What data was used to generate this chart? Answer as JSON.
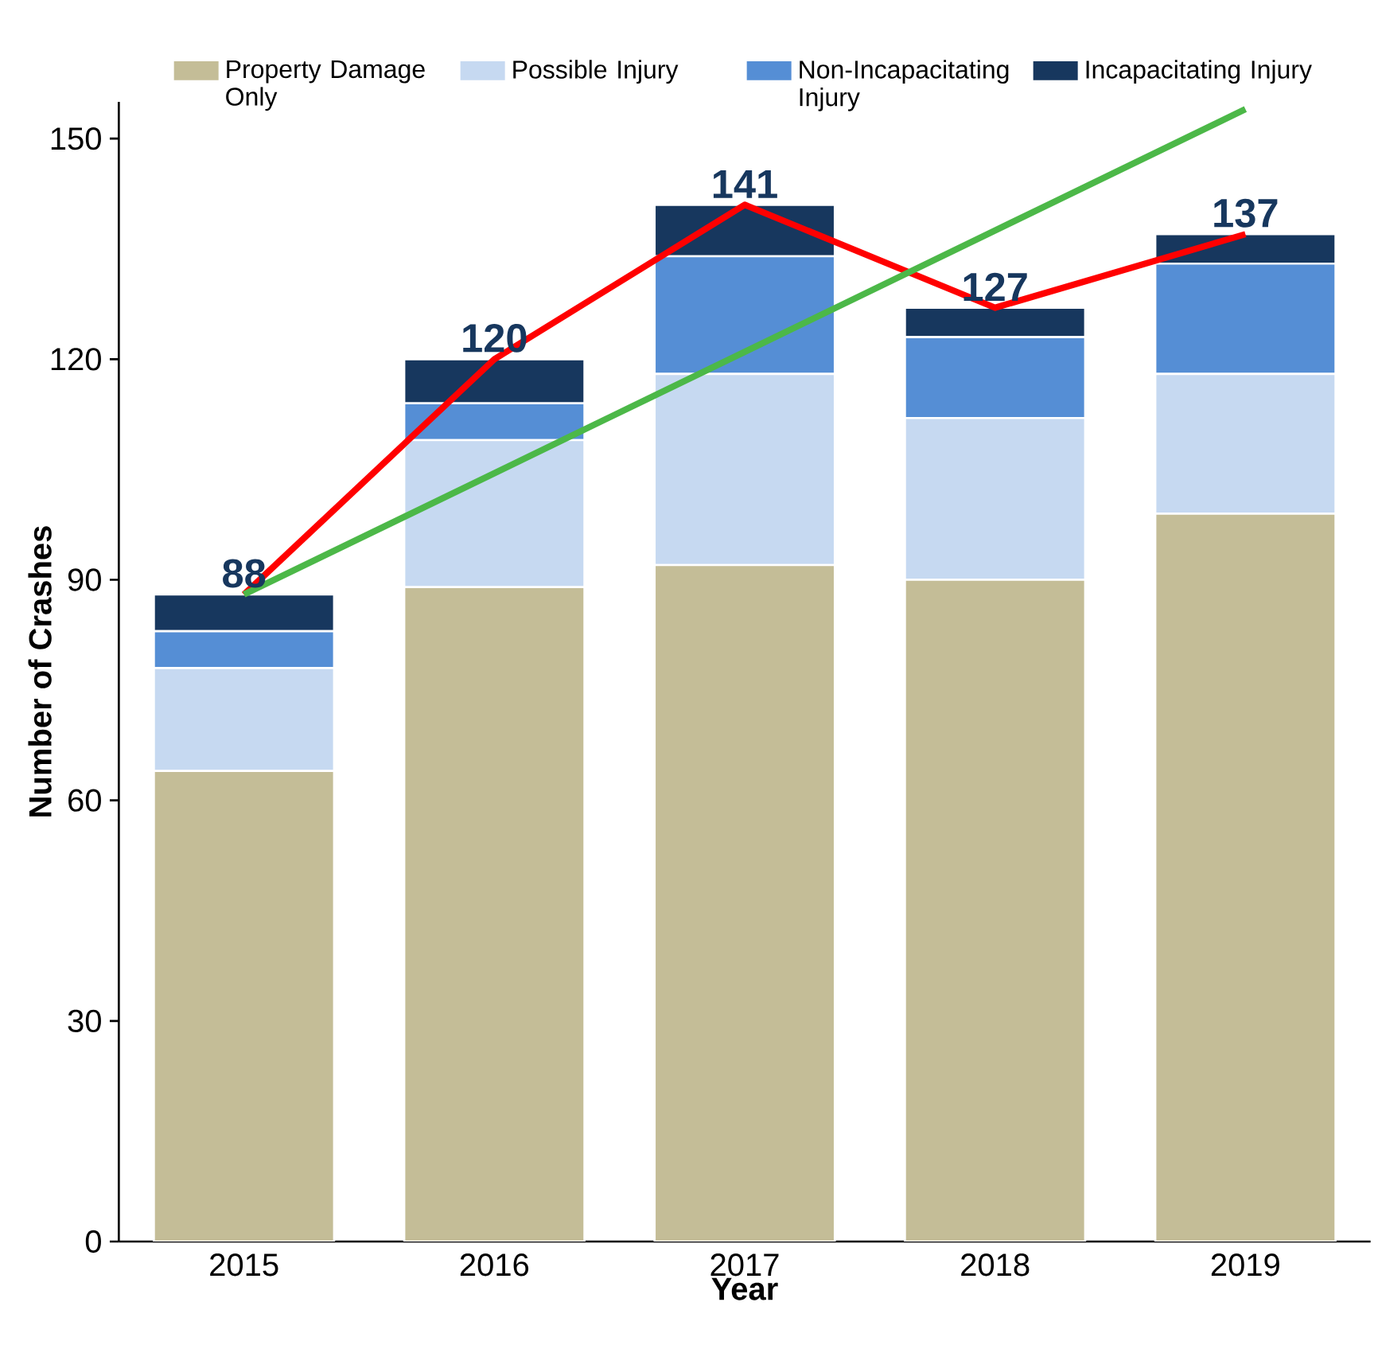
{
  "chart_data": {
    "type": "bar",
    "stacked": true,
    "xlabel": "Year",
    "ylabel": "Number of Crashes",
    "categories": [
      "2015",
      "2016",
      "2017",
      "2018",
      "2019"
    ],
    "series": [
      {
        "name": "Property Damage Only",
        "color": "#c4bd97",
        "values": [
          64,
          89,
          92,
          90,
          99
        ]
      },
      {
        "name": "Possible Injury",
        "color": "#c6d9f1",
        "values": [
          14,
          20,
          26,
          22,
          19
        ]
      },
      {
        "name": "Non-Incapacitating Injury",
        "color": "#558ed5",
        "values": [
          5,
          5,
          16,
          11,
          15
        ]
      },
      {
        "name": "Incapacitating Injury",
        "color": "#17375e",
        "values": [
          5,
          6,
          7,
          4,
          4
        ]
      },
      {
        "type": "line",
        "color": "#ff0000",
        "values": [
          88,
          120,
          141,
          127,
          137
        ]
      },
      {
        "type": "line",
        "color": "#4cb848",
        "values": [
          88,
          104.5,
          121,
          137.5,
          154
        ]
      }
    ],
    "totals": [
      "88",
      "120",
      "141",
      "127",
      "137"
    ],
    "ylim": [
      0,
      155
    ],
    "yticks": [
      0,
      30,
      60,
      90,
      120,
      150
    ],
    "legend": "top",
    "grid": false
  }
}
